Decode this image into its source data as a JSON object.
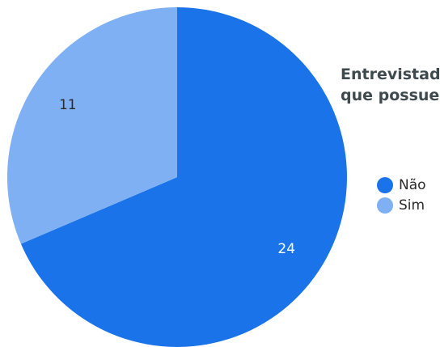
{
  "chart_data": {
    "type": "pie",
    "title_lines": [
      "Entrevistados que possuem",
      "que possuem"
    ],
    "title": "",
    "categories": [
      "Não",
      "Sim"
    ],
    "values": [
      24,
      11
    ],
    "colors": [
      "#1a73e8",
      "#7eb0f3"
    ],
    "data_labels": [
      "24",
      "11"
    ],
    "legend_placement": "right",
    "start_angle": "12 o'clock",
    "direction": "clockwise"
  }
}
